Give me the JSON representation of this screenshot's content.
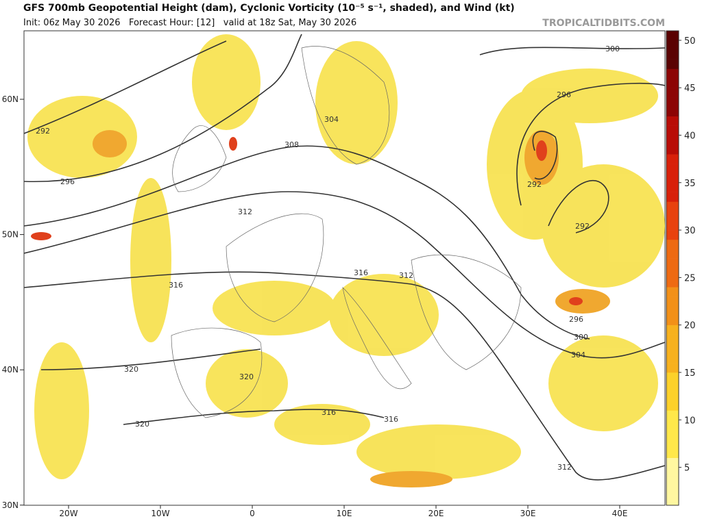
{
  "header": {
    "title": "GFS 700mb Geopotential Height (dam), Cyclonic Vorticity (10⁻⁵ s⁻¹, shaded), and Wind (kt)",
    "subtitle": "Init: 06z May 30 2026   Forecast Hour: [12]   valid at 18z Sat, May 30 2026",
    "site": "TROPICALTIDBITS.COM"
  },
  "axes": {
    "lat_labels": [
      "60N",
      "50N",
      "40N",
      "30N"
    ],
    "lon_labels": [
      "20W",
      "10W",
      "0",
      "10E",
      "20E",
      "30E",
      "40E"
    ]
  },
  "colorbar": {
    "lim": [
      1,
      51
    ],
    "ticks": [
      5,
      10,
      15,
      20,
      25,
      30,
      35,
      40,
      45,
      50
    ]
  },
  "contour_labels": [
    "300",
    "296",
    "304",
    "308",
    "292",
    "296",
    "292",
    "312",
    "292",
    "316",
    "316",
    "312",
    "296",
    "300",
    "304",
    "316",
    "320",
    "320",
    "320",
    "316",
    "312"
  ]
}
